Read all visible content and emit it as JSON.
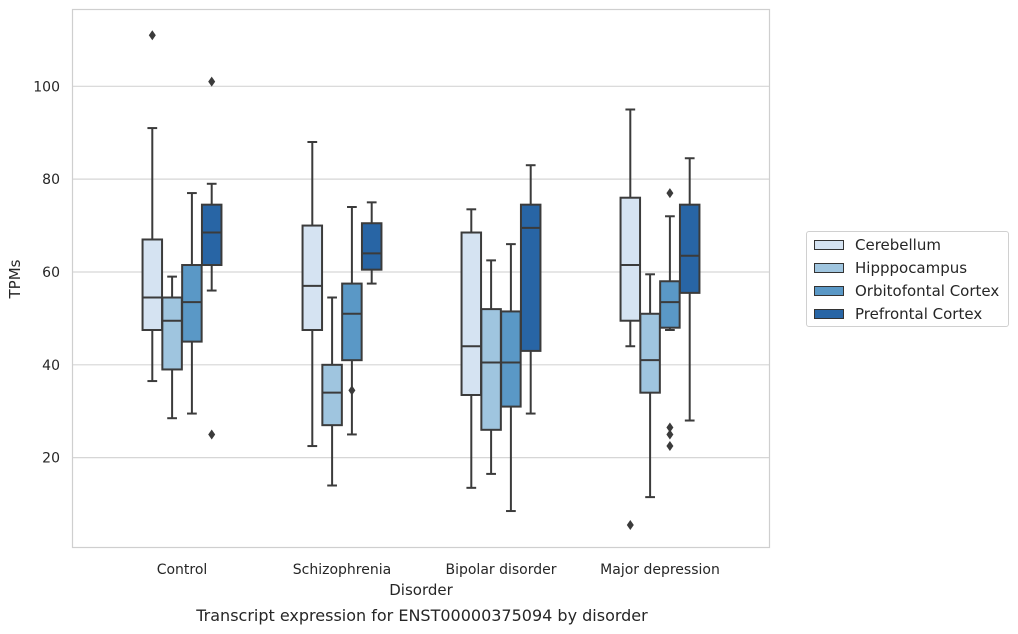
{
  "caption": "Transcript expression for ENST00000375094 by disorder",
  "chart_data": {
    "type": "boxplot",
    "xlabel": "Disorder",
    "ylabel": "TPMs",
    "ylim": [
      0,
      116
    ],
    "yticks": [
      20,
      40,
      60,
      80,
      100
    ],
    "grid": "horizontal",
    "legend_position": "right",
    "categories": [
      "Control",
      "Schizophrenia",
      "Bipolar disorder",
      "Major depression"
    ],
    "series": [
      {
        "name": "Cerebellum",
        "color": "#d5e3f2",
        "boxes": [
          {
            "whisker_low": 36.5,
            "q1": 47.5,
            "median": 54.5,
            "q3": 67.0,
            "whisker_high": 91.0,
            "outliers": [
              111.0
            ]
          },
          {
            "whisker_low": 22.5,
            "q1": 47.5,
            "median": 57.0,
            "q3": 70.0,
            "whisker_high": 88.0,
            "outliers": []
          },
          {
            "whisker_low": 13.5,
            "q1": 33.5,
            "median": 44.0,
            "q3": 68.5,
            "whisker_high": 73.5,
            "outliers": []
          },
          {
            "whisker_low": 44.0,
            "q1": 49.5,
            "median": 61.5,
            "q3": 76.0,
            "whisker_high": 95.0,
            "outliers": [
              5.5
            ]
          }
        ]
      },
      {
        "name": "Hipppocampus",
        "color": "#9fc5df",
        "boxes": [
          {
            "whisker_low": 28.5,
            "q1": 39.0,
            "median": 49.5,
            "q3": 54.5,
            "whisker_high": 59.0,
            "outliers": []
          },
          {
            "whisker_low": 14.0,
            "q1": 27.0,
            "median": 34.0,
            "q3": 40.0,
            "whisker_high": 54.5,
            "outliers": []
          },
          {
            "whisker_low": 16.5,
            "q1": 26.0,
            "median": 40.5,
            "q3": 52.0,
            "whisker_high": 62.5,
            "outliers": []
          },
          {
            "whisker_low": 11.5,
            "q1": 34.0,
            "median": 41.0,
            "q3": 51.0,
            "whisker_high": 59.5,
            "outliers": []
          }
        ]
      },
      {
        "name": "Orbitofontal Cortex",
        "color": "#5a98c6",
        "boxes": [
          {
            "whisker_low": 29.5,
            "q1": 45.0,
            "median": 53.5,
            "q3": 61.5,
            "whisker_high": 77.0,
            "outliers": []
          },
          {
            "whisker_low": 25.0,
            "q1": 41.0,
            "median": 51.0,
            "q3": 57.5,
            "whisker_high": 74.0,
            "outliers": [
              34.5
            ]
          },
          {
            "whisker_low": 8.5,
            "q1": 31.0,
            "median": 40.5,
            "q3": 51.5,
            "whisker_high": 66.0,
            "outliers": []
          },
          {
            "whisker_low": 47.5,
            "q1": 48.0,
            "median": 53.5,
            "q3": 58.0,
            "whisker_high": 72.0,
            "outliers": [
              77.0,
              26.5,
              25.0,
              22.5
            ]
          }
        ]
      },
      {
        "name": "Prefrontal Cortex",
        "color": "#2865a5",
        "boxes": [
          {
            "whisker_low": 56.0,
            "q1": 61.5,
            "median": 68.5,
            "q3": 74.5,
            "whisker_high": 79.0,
            "outliers": [
              101.0,
              25.0
            ]
          },
          {
            "whisker_low": 57.5,
            "q1": 60.5,
            "median": 64.0,
            "q3": 70.5,
            "whisker_high": 75.0,
            "outliers": []
          },
          {
            "whisker_low": 29.5,
            "q1": 43.0,
            "median": 69.5,
            "q3": 74.5,
            "whisker_high": 83.0,
            "outliers": []
          },
          {
            "whisker_low": 28.0,
            "q1": 55.5,
            "median": 63.5,
            "q3": 74.5,
            "whisker_high": 84.5,
            "outliers": []
          }
        ]
      }
    ]
  }
}
